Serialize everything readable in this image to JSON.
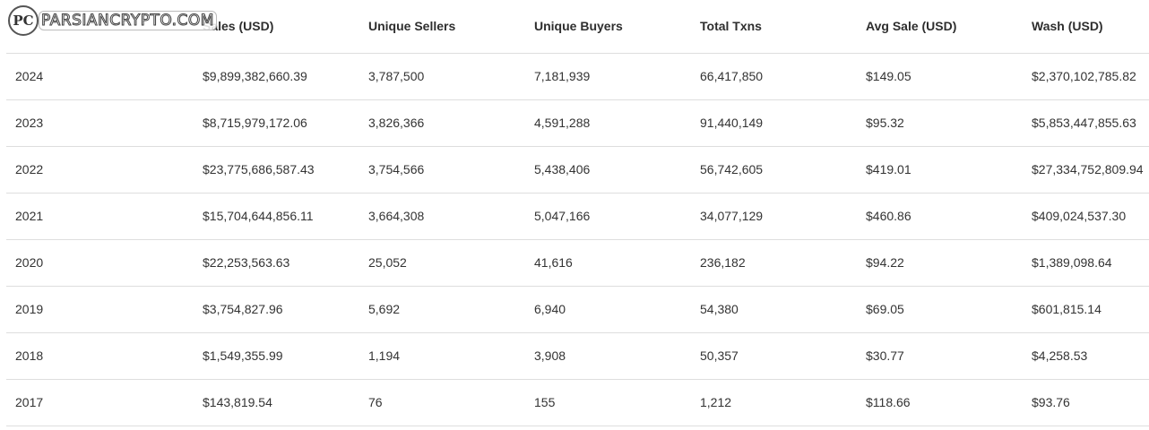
{
  "watermark": {
    "text": "PARSIANCRYPTO.COM",
    "badge": "PC"
  },
  "table": {
    "headers": [
      "",
      "Sales (USD)",
      "Unique Sellers",
      "Unique Buyers",
      "Total Txns",
      "Avg Sale (USD)",
      "Wash (USD)"
    ],
    "rows": [
      [
        "2024",
        "$9,899,382,660.39",
        "3,787,500",
        "7,181,939",
        "66,417,850",
        "$149.05",
        "$2,370,102,785.82"
      ],
      [
        "2023",
        "$8,715,979,172.06",
        "3,826,366",
        "4,591,288",
        "91,440,149",
        "$95.32",
        "$5,853,447,855.63"
      ],
      [
        "2022",
        "$23,775,686,587.43",
        "3,754,566",
        "5,438,406",
        "56,742,605",
        "$419.01",
        "$27,334,752,809.94"
      ],
      [
        "2021",
        "$15,704,644,856.11",
        "3,664,308",
        "5,047,166",
        "34,077,129",
        "$460.86",
        "$409,024,537.30"
      ],
      [
        "2020",
        "$22,253,563.63",
        "25,052",
        "41,616",
        "236,182",
        "$94.22",
        "$1,389,098.64"
      ],
      [
        "2019",
        "$3,754,827.96",
        "5,692",
        "6,940",
        "54,380",
        "$69.05",
        "$601,815.14"
      ],
      [
        "2018",
        "$1,549,355.99",
        "1,194",
        "3,908",
        "50,357",
        "$30.77",
        "$4,258.53"
      ],
      [
        "2017",
        "$143,819.54",
        "76",
        "155",
        "1,212",
        "$118.66",
        "$93.76"
      ]
    ]
  }
}
